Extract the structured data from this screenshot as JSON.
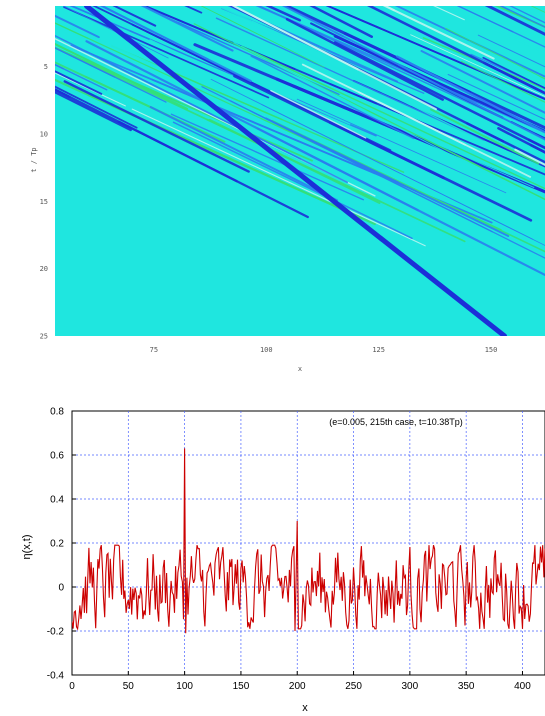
{
  "chart_data": [
    {
      "type": "heatmap",
      "title": "",
      "xlabel": "x",
      "ylabel": "t / Tp",
      "xlim": [
        53,
        162
      ],
      "ylim": [
        0.5,
        25
      ],
      "y_inverted": true,
      "x_ticks": [
        "75",
        "100",
        "125",
        "150"
      ],
      "y_ticks": [
        "5",
        "10",
        "15",
        "20",
        "25"
      ],
      "colormap": [
        "#1c2fd8",
        "#2a7ff0",
        "#1fe6df",
        "#33e07a",
        "#b9f5f0"
      ],
      "background_color": "#1fe6df",
      "dominant_ridge": {
        "start": {
          "x": 60,
          "t": 0.5
        },
        "end": {
          "x": 153,
          "t": 25
        }
      }
    },
    {
      "type": "line",
      "title": "",
      "annotation": "(e=0.005, 215th case, t=10.38Tp)",
      "xlabel": "x",
      "ylabel": "η(x,t)",
      "xlim": [
        0,
        420
      ],
      "ylim": [
        -0.4,
        0.8
      ],
      "x_ticks": [
        "0",
        "50",
        "100",
        "150",
        "200",
        "250",
        "300",
        "350",
        "400"
      ],
      "y_ticks": [
        "0.8",
        "0.6",
        "0.4",
        "0.2",
        "0",
        "-0.2",
        "-0.4"
      ],
      "grid": true,
      "line_color": "#cc0000",
      "series": [
        {
          "values": []
        }
      ],
      "peaks": [
        {
          "x": 100,
          "y": 0.63
        },
        {
          "x": 200,
          "y": 0.3
        },
        {
          "x": 101,
          "y": -0.21
        },
        {
          "x": 198,
          "y": -0.2
        }
      ]
    }
  ]
}
